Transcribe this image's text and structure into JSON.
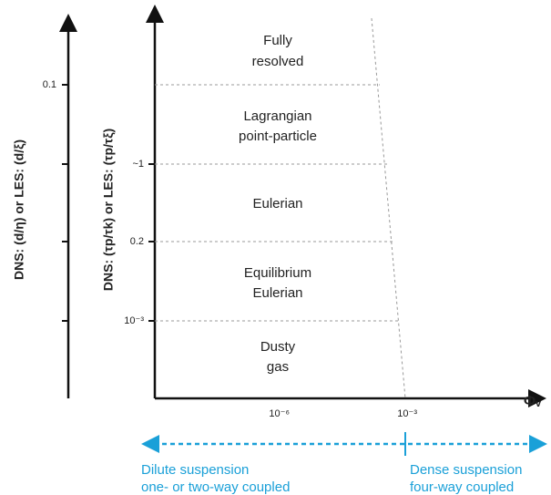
{
  "left_axis": {
    "label": "DNS: (d/η) or LES: (d/ξ)",
    "tick_label": "0.1"
  },
  "inner_axis": {
    "label": "DNS: (τp/τk) or LES: (τp/τξ)",
    "tick_labels": [
      "~1",
      "0.2",
      "10⁻³"
    ]
  },
  "x_axis": {
    "label": "Φᵥ",
    "tick_labels": [
      "10⁻⁶",
      "10⁻³"
    ]
  },
  "regions": [
    [
      "Fully",
      "resolved"
    ],
    [
      "Lagrangian",
      "point-particle"
    ],
    [
      "Eulerian"
    ],
    [
      "Equilibrium",
      "Eulerian"
    ],
    [
      "Dusty",
      "gas"
    ]
  ],
  "bottom": {
    "left": [
      "Dilute suspension",
      "one- or two-way coupled"
    ],
    "right": [
      "Dense suspension",
      "four-way coupled"
    ]
  }
}
